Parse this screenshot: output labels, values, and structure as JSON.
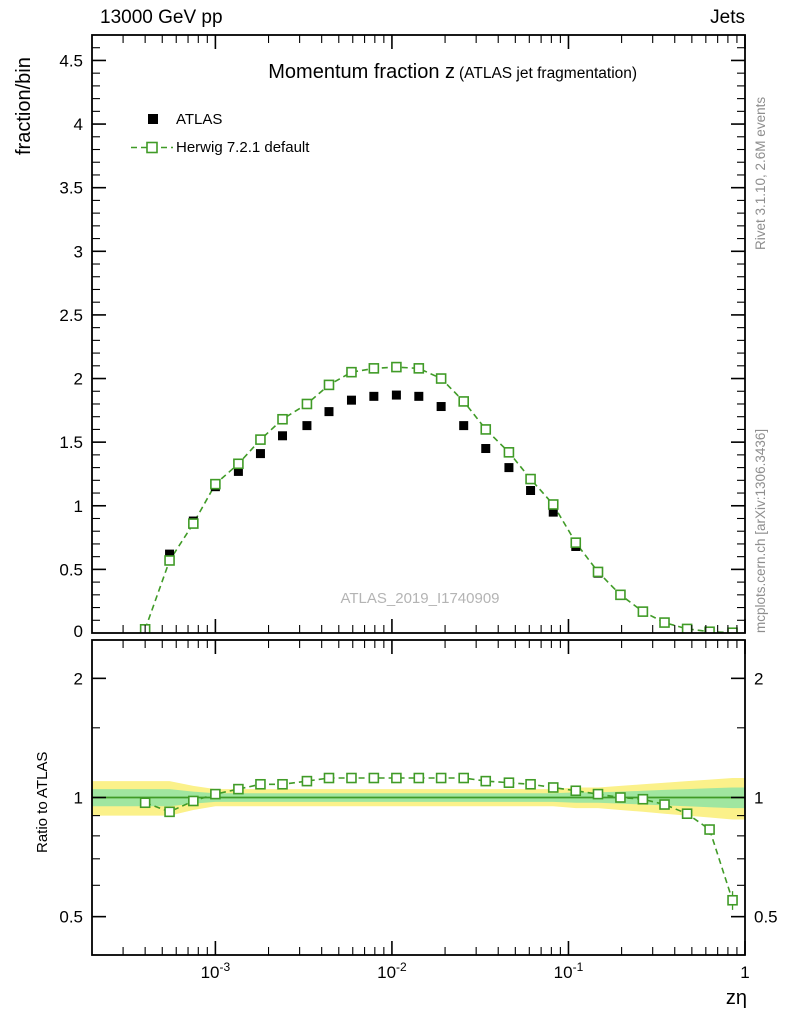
{
  "header": {
    "left": "13000 GeV pp",
    "right": "Jets"
  },
  "title": {
    "main": "Momentum fraction z",
    "sub": "(ATLAS jet fragmentation)"
  },
  "watermark": "ATLAS_2019_I1740909",
  "side_notes": {
    "top": "Rivet 3.1.10,  2.6M events",
    "bottom": "mcplots.cern.ch [arXiv:1306.3436]"
  },
  "axes": {
    "top_ylabel": "fraction/bin",
    "ratio_ylabel": "Ratio to ATLAS",
    "xlabel": "zη",
    "top_yticks": [
      0,
      0.5,
      1,
      1.5,
      2,
      2.5,
      3,
      3.5,
      4,
      4.5
    ],
    "ratio_yticks": [
      0.5,
      1,
      2
    ],
    "x_ticks": [
      {
        "value": 0.001,
        "base": "10",
        "exp": "-3"
      },
      {
        "value": 0.01,
        "base": "10",
        "exp": "-2"
      },
      {
        "value": 0.1,
        "base": "10",
        "exp": "-1"
      },
      {
        "value": 1,
        "base": "1",
        "exp": ""
      }
    ]
  },
  "legend": [
    {
      "label": "ATLAS",
      "marker": "filled-square",
      "color": "#000000"
    },
    {
      "label": "Herwig 7.2.1 default",
      "marker": "open-square-dashed",
      "color": "#409b27"
    }
  ],
  "colors": {
    "atlas": "#000000",
    "herwig": "#409b27",
    "ratio_line": "#409b27",
    "band_yellow": "#fbf18a",
    "band_green": "#a0e6a0",
    "frame": "#000000",
    "watermark": "#b4b4b4",
    "side_note": "#8e8e8e"
  },
  "chart_data": {
    "type": "line",
    "x_scale": "log",
    "x_range": [
      0.0002,
      1
    ],
    "y_range_top": [
      0,
      4.7
    ],
    "y_range_ratio": [
      0.4,
      2.5
    ],
    "ratio_scale": "log",
    "grid": false,
    "legend_position": "top-left",
    "x": [
      0.0004,
      0.00055,
      0.00075,
      0.001,
      0.00135,
      0.0018,
      0.0024,
      0.0033,
      0.0044,
      0.0059,
      0.0079,
      0.0106,
      0.0142,
      0.019,
      0.0255,
      0.034,
      0.046,
      0.061,
      0.082,
      0.11,
      0.147,
      0.197,
      0.264,
      0.35,
      0.47,
      0.63,
      0.85
    ],
    "series": [
      {
        "name": "ATLAS",
        "marker": "filled-square",
        "color": "#000000",
        "values": [
          0.03,
          0.62,
          0.88,
          1.15,
          1.27,
          1.41,
          1.55,
          1.63,
          1.74,
          1.83,
          1.86,
          1.87,
          1.86,
          1.78,
          1.63,
          1.45,
          1.3,
          1.12,
          0.95,
          0.68,
          0.47,
          0.3,
          0.17,
          0.085,
          0.035,
          0.012,
          0.004
        ]
      },
      {
        "name": "Herwig 7.2.1 default",
        "marker": "open-square",
        "line": "dashed",
        "color": "#409b27",
        "values": [
          0.029,
          0.57,
          0.86,
          1.17,
          1.33,
          1.52,
          1.68,
          1.8,
          1.95,
          2.05,
          2.08,
          2.09,
          2.08,
          2.0,
          1.82,
          1.6,
          1.42,
          1.21,
          1.01,
          0.71,
          0.48,
          0.3,
          0.168,
          0.082,
          0.032,
          0.01,
          0.0022
        ]
      }
    ],
    "ratio": {
      "name": "Herwig 7.2.1 default / ATLAS",
      "values": [
        0.97,
        0.92,
        0.98,
        1.02,
        1.05,
        1.08,
        1.08,
        1.1,
        1.12,
        1.12,
        1.12,
        1.12,
        1.12,
        1.12,
        1.12,
        1.1,
        1.09,
        1.08,
        1.06,
        1.04,
        1.02,
        1.0,
        0.99,
        0.96,
        0.91,
        0.83,
        0.55
      ],
      "errors": [
        0.02,
        0.01,
        0.01,
        0.01,
        0.008,
        0.008,
        0.008,
        0.008,
        0.008,
        0.008,
        0.008,
        0.008,
        0.008,
        0.008,
        0.008,
        0.008,
        0.008,
        0.008,
        0.008,
        0.01,
        0.01,
        0.012,
        0.015,
        0.018,
        0.02,
        0.025,
        0.03
      ],
      "band_yellow_halfwidth": [
        0.1,
        0.1,
        0.07,
        0.05,
        0.05,
        0.05,
        0.05,
        0.05,
        0.05,
        0.05,
        0.05,
        0.05,
        0.05,
        0.05,
        0.05,
        0.05,
        0.05,
        0.05,
        0.05,
        0.06,
        0.06,
        0.07,
        0.08,
        0.09,
        0.1,
        0.11,
        0.12
      ],
      "band_green_halfwidth": [
        0.05,
        0.05,
        0.035,
        0.025,
        0.025,
        0.025,
        0.025,
        0.025,
        0.025,
        0.025,
        0.025,
        0.025,
        0.025,
        0.025,
        0.025,
        0.025,
        0.025,
        0.025,
        0.025,
        0.03,
        0.03,
        0.035,
        0.04,
        0.045,
        0.05,
        0.055,
        0.06
      ]
    }
  }
}
